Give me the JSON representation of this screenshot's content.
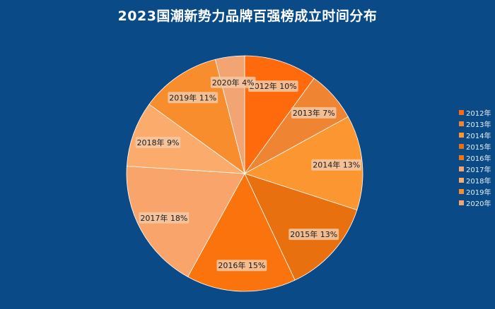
{
  "chart_data": {
    "type": "pie",
    "title": "2023国潮新势力品牌百强榜成立时间分布",
    "categories": [
      "2012年",
      "2013年",
      "2014年",
      "2015年",
      "2016年",
      "2017年",
      "2018年",
      "2019年",
      "2020年"
    ],
    "values": [
      10,
      7,
      13,
      13,
      15,
      18,
      9,
      11,
      4
    ],
    "unit": "%",
    "legend_position": "right",
    "colors": [
      "#ff6a0d",
      "#ef8433",
      "#fb9630",
      "#e9700f",
      "#fb730c",
      "#f8a46a",
      "#fbab6b",
      "#f88d2d",
      "#f3a473"
    ]
  }
}
